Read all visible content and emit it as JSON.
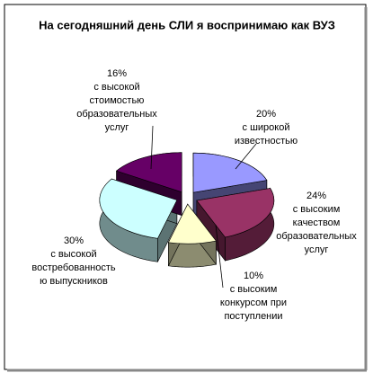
{
  "chart_data": {
    "type": "pie",
    "title": "На сегодняшний день СЛИ я воспринимаю как ВУЗ",
    "categories": [
      [
        "с широкой",
        "известностью"
      ],
      [
        "с высоким",
        "качеством",
        "образовательных",
        "услуг"
      ],
      [
        "с высоким",
        "конкурсом при",
        "поступлении"
      ],
      [
        "с высокой",
        "востребованность",
        "ю выпускников"
      ],
      [
        "с высокой",
        "стоимостью",
        "образовательных",
        "услуг"
      ]
    ],
    "values": [
      20,
      24,
      10,
      30,
      16
    ],
    "value_labels": [
      "20%",
      "24%",
      "10%",
      "30%",
      "16%"
    ],
    "colors": [
      "#9999ff",
      "#993366",
      "#ffffcc",
      "#ccffff",
      "#660066"
    ]
  }
}
